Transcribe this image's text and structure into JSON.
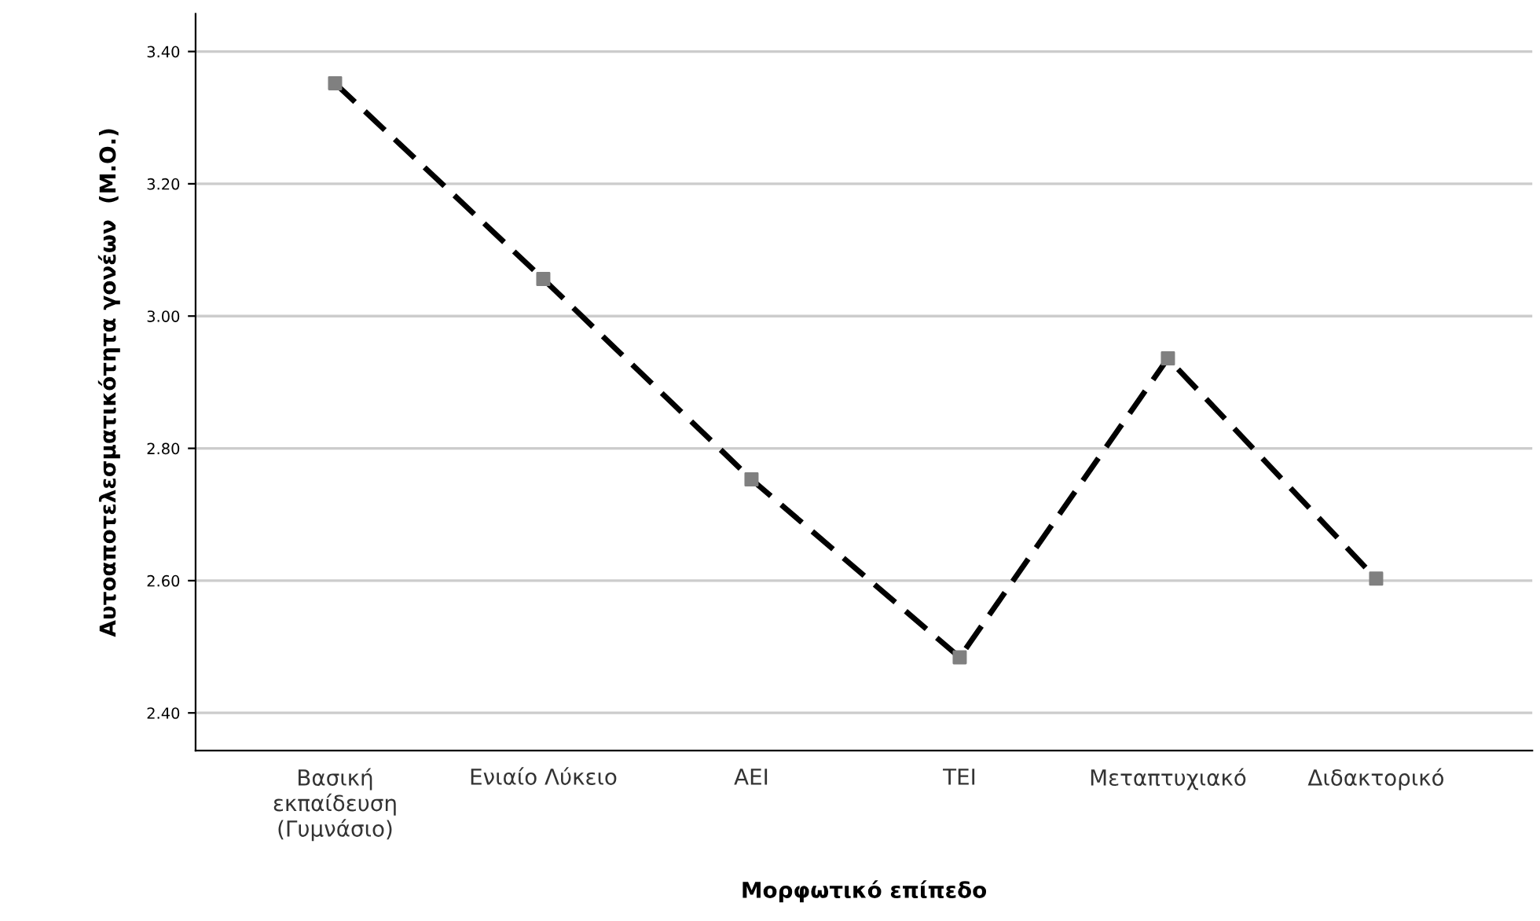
{
  "chart_data": {
    "type": "line",
    "xlabel": "Μορφωτικό επίπεδο",
    "ylabel": "Αυτοαποτελεσματικότητα γονέων  (Μ.Ο.)",
    "categories": [
      "Βασική\nεκπαίδευση\n(Γυμνάσιο)",
      "Ενιαίο Λύκειο",
      "ΑΕΙ",
      "ΤΕΙ",
      "Μεταπτυχιακό",
      "Διδακτορικό"
    ],
    "series": [
      {
        "color": "#000000",
        "colors": [
          "#808080",
          "#808080",
          "#808080",
          "#808080",
          "#808080",
          "#808080"
        ],
        "values": [
          3.352,
          3.056,
          2.753,
          2.484,
          2.936,
          2.603
        ]
      }
    ],
    "ylim": [
      2.343,
      3.457
    ],
    "yticks": [
      {
        "value": 2.4,
        "label": "2.40"
      },
      {
        "value": 2.6,
        "label": "2.60"
      },
      {
        "value": 2.8,
        "label": "2.80"
      },
      {
        "value": 3.0,
        "label": "3.00"
      },
      {
        "value": 3.2,
        "label": "3.20"
      },
      {
        "value": 3.4,
        "label": "3.40"
      }
    ],
    "grid": "y",
    "marker": "square",
    "line_style": "dashed"
  }
}
